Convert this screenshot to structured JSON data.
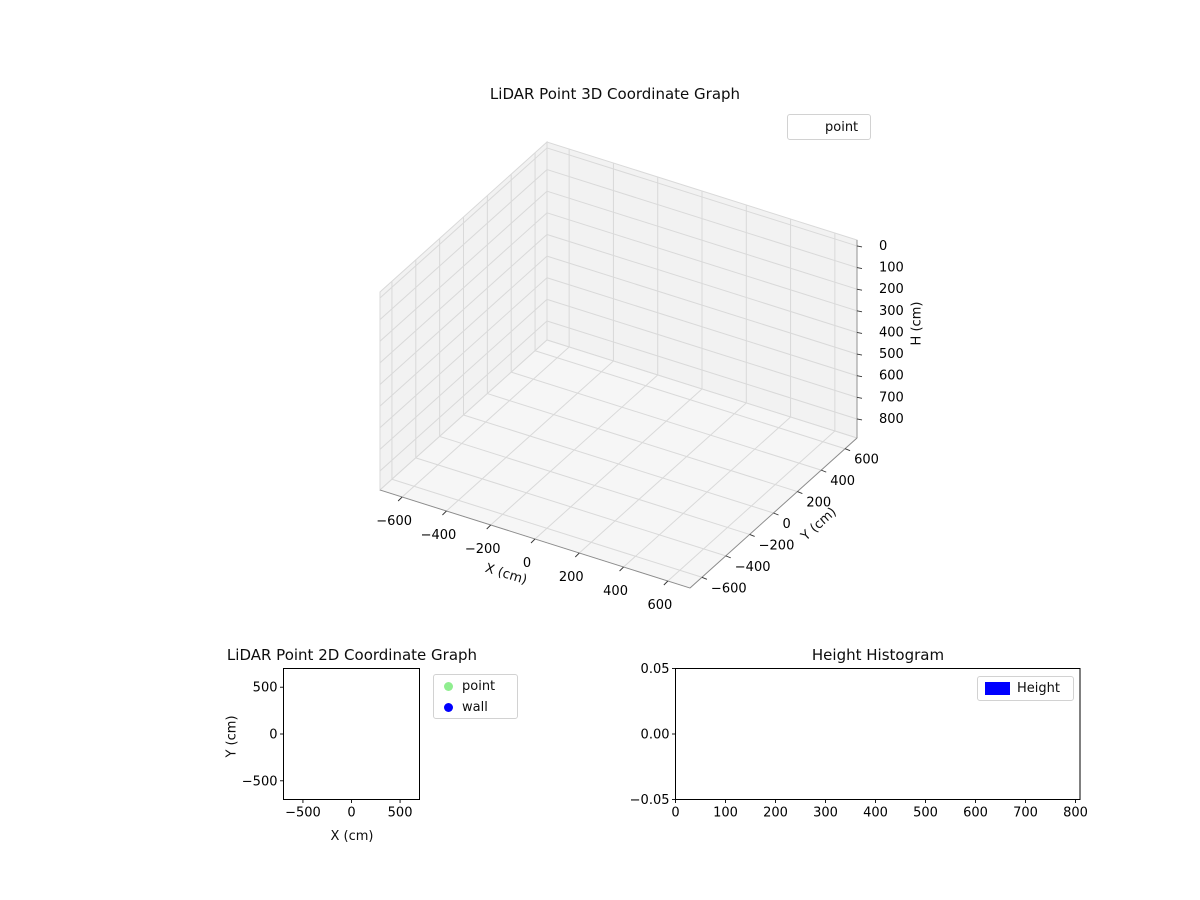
{
  "figure": {
    "background": "#ffffff"
  },
  "chart_data": [
    {
      "id": "lidar-3d",
      "type": "scatter3d",
      "title": "LiDAR Point 3D Coordinate Graph",
      "xlabel": "X (cm)",
      "ylabel": "Y (cm)",
      "zlabel": "H (cm)",
      "x_ticks": [
        -600,
        -400,
        -200,
        0,
        200,
        400,
        600
      ],
      "x_tick_labels": [
        "−600",
        "−400",
        "−200",
        "0",
        "200",
        "400",
        "600"
      ],
      "y_ticks": [
        -600,
        -400,
        -200,
        0,
        200,
        400,
        600
      ],
      "y_tick_labels": [
        "−600",
        "−400",
        "−200",
        "0",
        "200",
        "400",
        "600"
      ],
      "z_ticks": [
        0,
        100,
        200,
        300,
        400,
        500,
        600,
        700,
        800
      ],
      "z_tick_labels": [
        "0",
        "100",
        "200",
        "300",
        "400",
        "500",
        "600",
        "700",
        "800"
      ],
      "x_range": [
        -700,
        700
      ],
      "y_range": [
        -700,
        700
      ],
      "z_range": [
        0,
        800
      ],
      "z_axis_inverted": true,
      "grid": true,
      "pane_color": "#f2f2f2",
      "grid_color": "#d9d9d9",
      "legend": {
        "position": "upper right",
        "entries": [
          {
            "label": "point",
            "marker": "none"
          }
        ]
      },
      "series": [
        {
          "name": "point",
          "points": []
        }
      ]
    },
    {
      "id": "lidar-2d",
      "type": "scatter",
      "title": "LiDAR Point 2D Coordinate Graph",
      "xlabel": "X (cm)",
      "ylabel": "Y (cm)",
      "x_ticks": [
        -500,
        0,
        500
      ],
      "x_tick_labels": [
        "−500",
        "0",
        "500"
      ],
      "y_ticks": [
        500,
        0,
        -500
      ],
      "y_tick_labels": [
        "500",
        "0",
        "−500"
      ],
      "x_range": [
        -700,
        700
      ],
      "y_range": [
        -700,
        700
      ],
      "grid": false,
      "legend": {
        "position": "outside right",
        "entries": [
          {
            "label": "point",
            "color": "#90ee90",
            "marker": "circle"
          },
          {
            "label": "wall",
            "color": "#0000ff",
            "marker": "circle"
          }
        ]
      },
      "series": [
        {
          "name": "point",
          "color": "#90ee90",
          "points": []
        },
        {
          "name": "wall",
          "color": "#0000ff",
          "points": []
        }
      ]
    },
    {
      "id": "height-histogram",
      "type": "bar",
      "title": "Height Histogram",
      "xlabel": "",
      "ylabel": "",
      "x_ticks": [
        0,
        100,
        200,
        300,
        400,
        500,
        600,
        700,
        800
      ],
      "x_tick_labels": [
        "0",
        "100",
        "200",
        "300",
        "400",
        "500",
        "600",
        "700",
        "800"
      ],
      "y_ticks": [
        0.05,
        0.0,
        -0.05
      ],
      "y_tick_labels": [
        "0.05",
        "0.00",
        "−0.05"
      ],
      "x_range": [
        0,
        809
      ],
      "y_range": [
        -0.05,
        0.05
      ],
      "grid": false,
      "legend": {
        "position": "upper right",
        "entries": [
          {
            "label": "Height",
            "color": "#0000ff",
            "marker": "rect"
          }
        ]
      },
      "values": []
    }
  ]
}
